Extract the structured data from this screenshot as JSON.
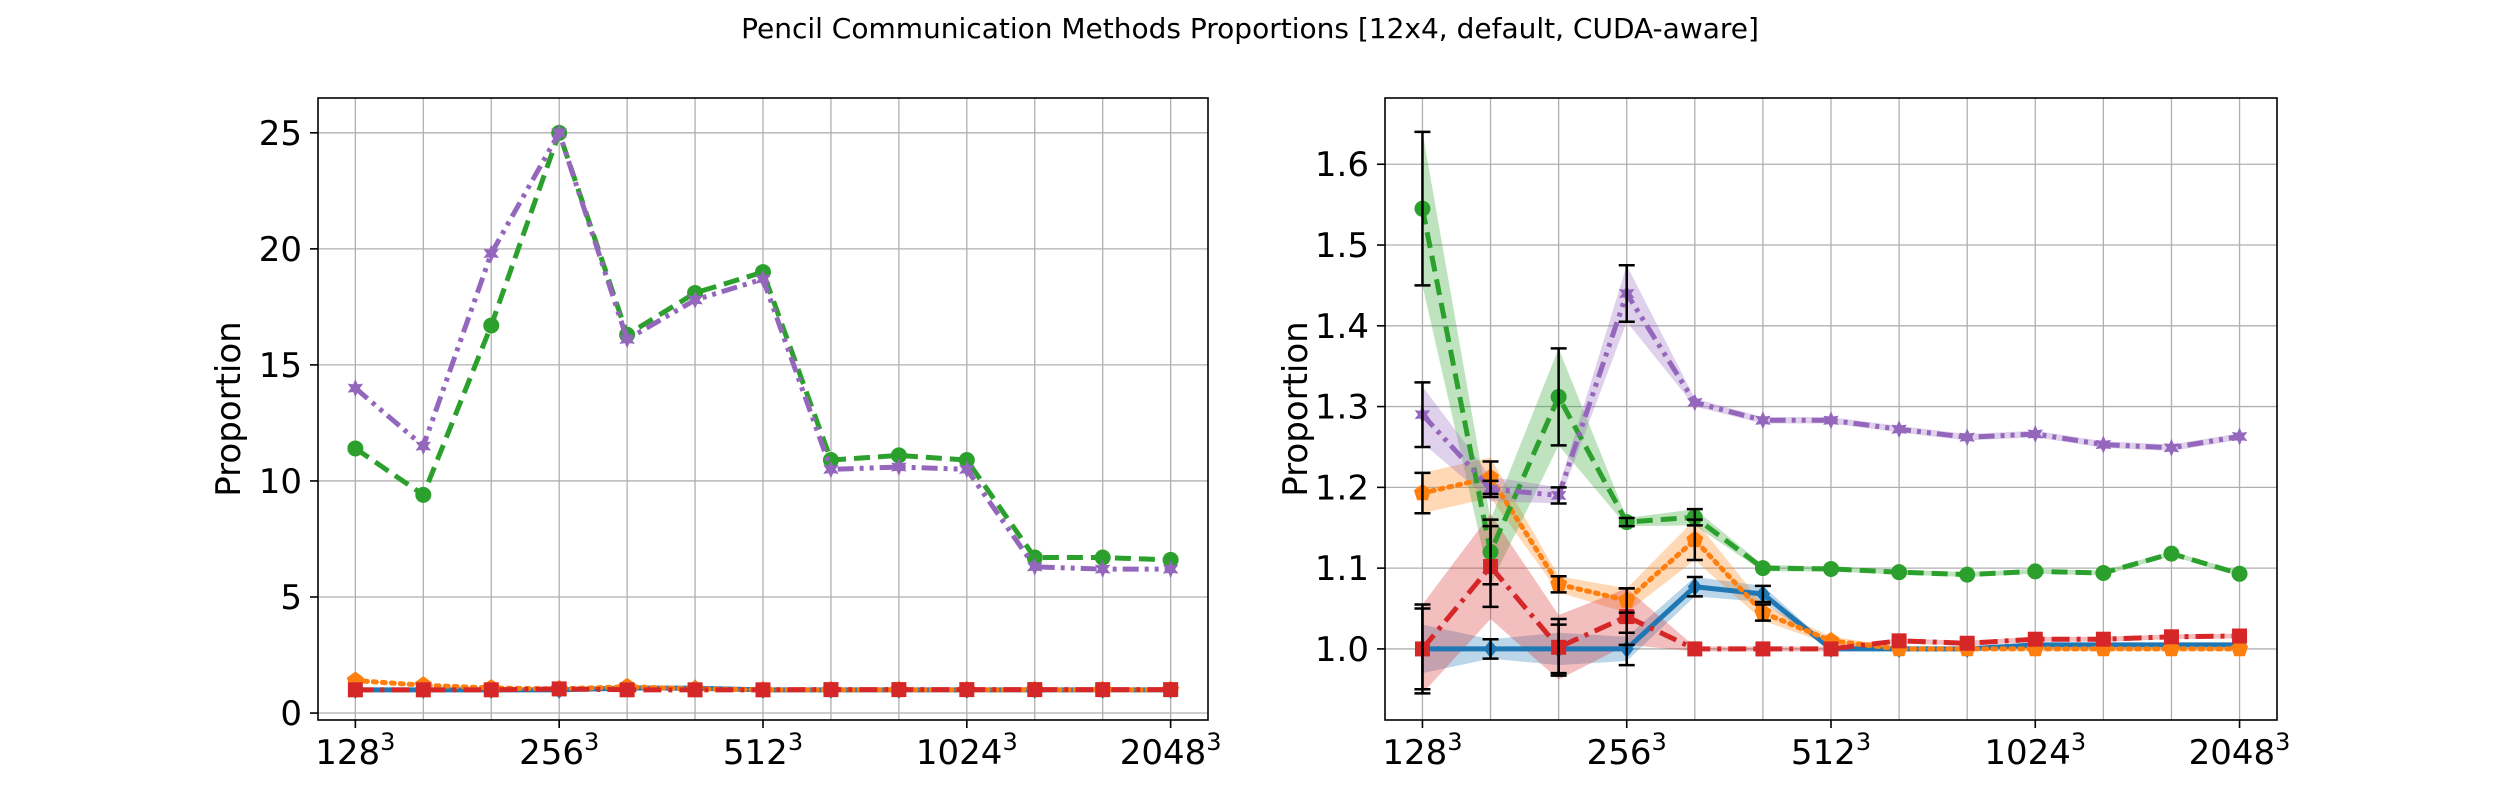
{
  "figure": {
    "title": "Pencil Communication Methods Proportions [12x4, default, CUDA-aware]"
  },
  "chart_data": [
    {
      "type": "line",
      "ylabel": "Proportion",
      "xlabel": "",
      "x_tick_labels": [
        {
          "base": "128",
          "exp": "3",
          "index": 0
        },
        {
          "base": "256",
          "exp": "3",
          "index": 3
        },
        {
          "base": "512",
          "exp": "3",
          "index": 6
        },
        {
          "base": "1024",
          "exp": "3",
          "index": 9
        },
        {
          "base": "2048",
          "exp": "3",
          "index": 12
        }
      ],
      "x_index": [
        0,
        1,
        2,
        3,
        4,
        5,
        6,
        7,
        8,
        9,
        10,
        11,
        12
      ],
      "xlim": [
        -0.55,
        12.55
      ],
      "ylim": [
        -0.3,
        26.5
      ],
      "y_ticks": [
        0,
        5,
        10,
        15,
        20,
        25
      ],
      "grid": true,
      "series": [
        {
          "color": "#1f77b4",
          "marker": "diamond",
          "linestyle": "solid",
          "values": [
            1.0,
            1.0,
            1.0,
            1.0,
            1.08,
            1.07,
            1.0,
            1.0,
            1.0,
            1.0,
            1.0,
            1.0,
            1.0
          ]
        },
        {
          "color": "#ff7f0e",
          "marker": "pentagon",
          "linestyle": "dotted",
          "values": [
            1.4,
            1.2,
            1.08,
            1.04,
            1.13,
            1.04,
            1.0,
            1.0,
            1.0,
            1.0,
            1.0,
            1.0,
            1.0
          ]
        },
        {
          "color": "#2ca02c",
          "marker": "circle",
          "linestyle": "dashed",
          "values": [
            11.4,
            9.4,
            16.7,
            25.0,
            16.3,
            18.1,
            19.0,
            10.9,
            11.1,
            10.9,
            6.7,
            6.7,
            6.6
          ]
        },
        {
          "color": "#d62728",
          "marker": "square",
          "linestyle": "dashdot",
          "values": [
            1.0,
            1.0,
            1.0,
            1.04,
            1.0,
            1.0,
            1.0,
            1.01,
            1.01,
            1.01,
            1.01,
            1.01,
            1.01
          ]
        },
        {
          "color": "#9467bd",
          "marker": "star",
          "linestyle": "dashdotdot",
          "values": [
            14.0,
            11.5,
            19.8,
            25.0,
            16.1,
            17.8,
            18.7,
            10.5,
            10.6,
            10.5,
            6.3,
            6.2,
            6.2
          ]
        }
      ]
    },
    {
      "type": "line",
      "ylabel": "Proportion",
      "xlabel": "",
      "x_tick_labels": [
        {
          "base": "128",
          "exp": "3",
          "index": 0
        },
        {
          "base": "256",
          "exp": "3",
          "index": 3
        },
        {
          "base": "512",
          "exp": "3",
          "index": 6
        },
        {
          "base": "1024",
          "exp": "3",
          "index": 9
        },
        {
          "base": "2048",
          "exp": "3",
          "index": 12
        }
      ],
      "x_index": [
        0,
        1,
        2,
        3,
        4,
        5,
        6,
        7,
        8,
        9,
        10,
        11,
        12
      ],
      "xlim": [
        -0.55,
        12.55
      ],
      "ylim": [
        0.912,
        1.682
      ],
      "y_ticks": [
        1.0,
        1.1,
        1.2,
        1.3,
        1.4,
        1.5,
        1.6
      ],
      "grid": true,
      "series": [
        {
          "color": "#1f77b4",
          "marker": "diamond",
          "linestyle": "solid",
          "values": [
            1.0,
            1.0,
            1.0,
            1.0,
            1.077,
            1.068,
            1.0,
            1.0,
            1.0,
            1.005,
            1.005,
            1.005,
            1.005
          ],
          "spread": [
            0.03,
            0.012,
            0.02,
            0.015,
            0.012,
            0.01,
            0.002,
            0.003,
            0.003,
            0.003,
            0.003,
            0.003,
            0.003
          ],
          "errorbars": [
            0.05,
            0.012,
            0.03,
            0.02,
            0.012,
            0.01,
            0,
            0,
            0,
            0,
            0,
            0,
            0
          ]
        },
        {
          "color": "#ff7f0e",
          "marker": "pentagon",
          "linestyle": "dotted",
          "values": [
            1.193,
            1.212,
            1.08,
            1.06,
            1.135,
            1.045,
            1.01,
            1.0,
            1.0,
            1.0,
            1.0,
            1.0,
            1.0
          ],
          "spread": [
            0.025,
            0.025,
            0.01,
            0.015,
            0.025,
            0.01,
            0.005,
            0.003,
            0.003,
            0.003,
            0.003,
            0.003,
            0.003
          ],
          "errorbars": [
            0.025,
            0.02,
            0.01,
            0.015,
            0.025,
            0.01,
            0,
            0,
            0,
            0,
            0,
            0,
            0
          ]
        },
        {
          "color": "#2ca02c",
          "marker": "circle",
          "linestyle": "dashed",
          "values": [
            1.545,
            1.12,
            1.312,
            1.157,
            1.163,
            1.1,
            1.099,
            1.095,
            1.092,
            1.096,
            1.094,
            1.118,
            1.093
          ],
          "spread": [
            0.095,
            0.04,
            0.06,
            0.005,
            0.01,
            0.004,
            0.003,
            0.003,
            0.003,
            0.003,
            0.003,
            0.003,
            0.003
          ],
          "errorbars": [
            0.095,
            0.04,
            0.06,
            0.005,
            0.01,
            0,
            0,
            0,
            0,
            0,
            0,
            0,
            0
          ]
        },
        {
          "color": "#d62728",
          "marker": "square",
          "linestyle": "dashdot",
          "values": [
            1.0,
            1.102,
            1.002,
            1.04,
            1.0,
            1.0,
            1.0,
            1.01,
            1.007,
            1.012,
            1.012,
            1.015,
            1.016
          ],
          "spread": [
            0.055,
            0.065,
            0.04,
            0.035,
            0.003,
            0.003,
            0.003,
            0.003,
            0.003,
            0.003,
            0.003,
            0.003,
            0.003
          ],
          "errorbars": [
            0.055,
            0.05,
            0.035,
            0.035,
            0,
            0,
            0,
            0,
            0,
            0,
            0,
            0,
            0
          ]
        },
        {
          "color": "#9467bd",
          "marker": "star",
          "linestyle": "dashdotdot",
          "values": [
            1.29,
            1.198,
            1.19,
            1.44,
            1.305,
            1.283,
            1.283,
            1.272,
            1.262,
            1.266,
            1.253,
            1.249,
            1.263
          ],
          "spread": [
            0.035,
            0.015,
            0.01,
            0.035,
            0.005,
            0.004,
            0.004,
            0.004,
            0.004,
            0.004,
            0.004,
            0.004,
            0.004
          ],
          "errorbars": [
            0.04,
            0.01,
            0.01,
            0.035,
            0,
            0,
            0,
            0,
            0,
            0,
            0,
            0,
            0
          ]
        }
      ]
    }
  ]
}
